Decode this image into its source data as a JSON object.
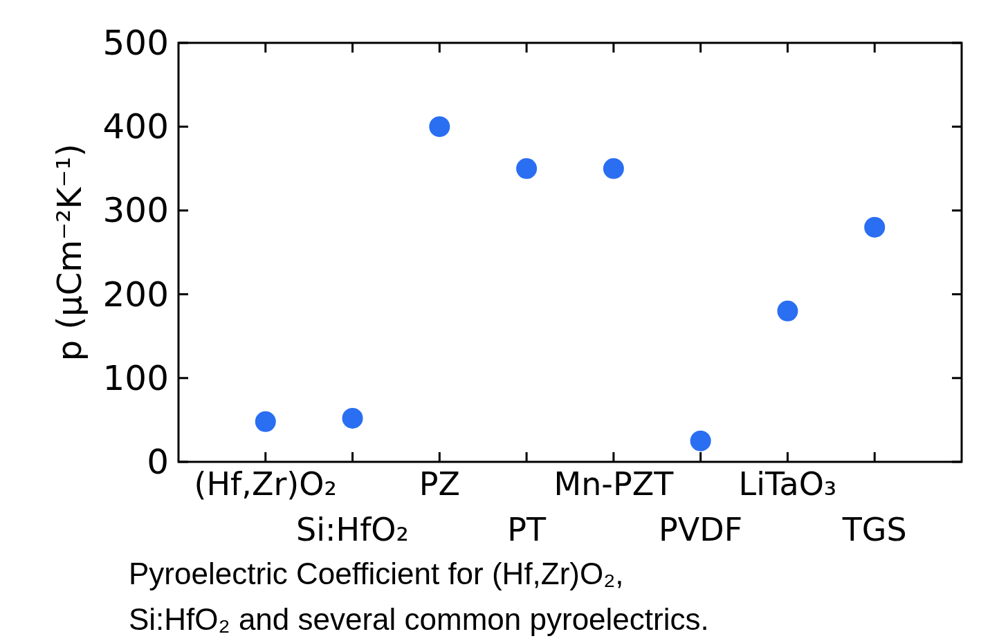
{
  "chart_data": {
    "type": "scatter",
    "categories": [
      "(Hf,Zr)O₂",
      "Si:HfO₂",
      "PZ",
      "PT",
      "Mn-PZT",
      "PVDF",
      "LiTaO₃",
      "TGS"
    ],
    "series": [
      {
        "color": "#2a6ef2",
        "values": [
          48,
          52,
          400,
          350,
          350,
          25,
          180,
          280
        ]
      }
    ],
    "ylabel": "p (μCm⁻²K⁻¹)",
    "ylim": [
      0,
      500
    ],
    "yticks": [
      0,
      100,
      200,
      300,
      400,
      500
    ],
    "marker": "circle",
    "grid": false,
    "annotations": [
      "Pyroelectric Coefficient for (Hf,Zr)O₂, Si:HfO₂ and several common pyroelectrics."
    ]
  }
}
